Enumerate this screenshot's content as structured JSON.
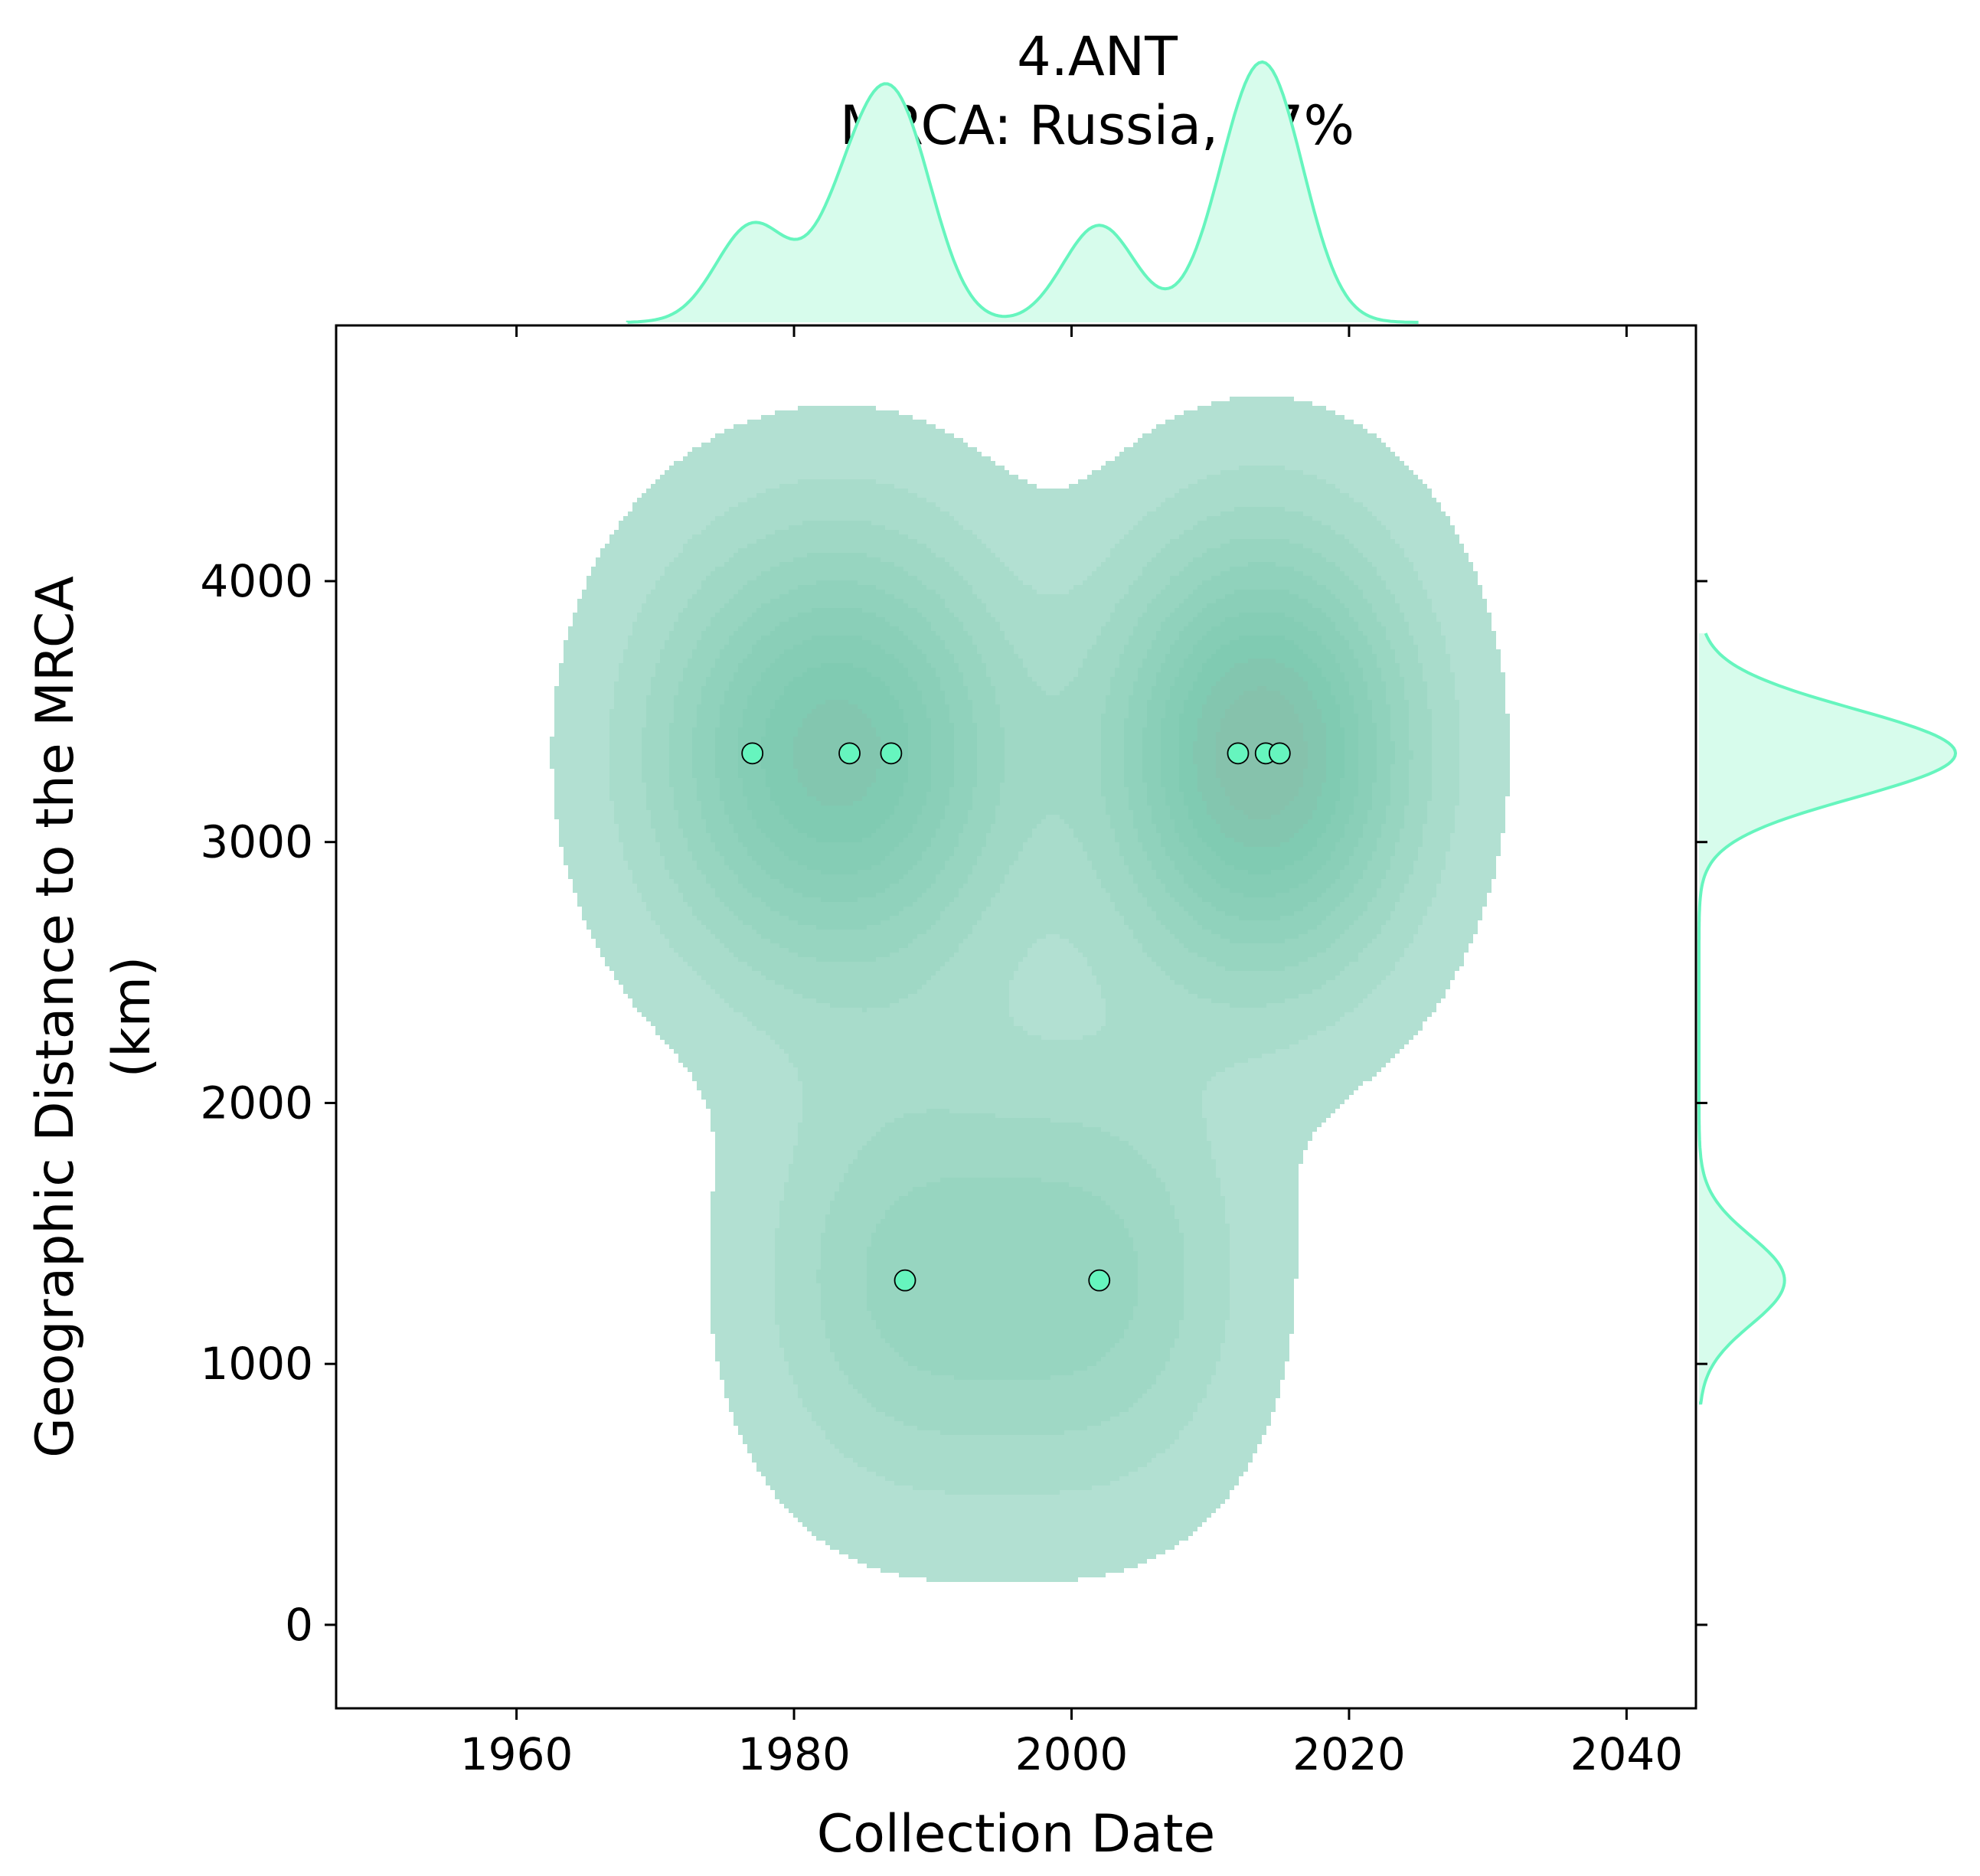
{
  "chart_data": {
    "type": "scatter",
    "title_lines": [
      "4.ANT",
      "MRCA: Russia, 97%"
    ],
    "xlabel": "Collection Date",
    "ylabel_lines": [
      "Geographic Distance to the MRCA",
      "(km)"
    ],
    "xlim": [
      1947,
      2045
    ],
    "ylim": [
      -320,
      4980
    ],
    "xticks": [
      1960,
      1980,
      2000,
      2020,
      2040
    ],
    "yticks": [
      0,
      1000,
      2000,
      3000,
      4000
    ],
    "kde_levels": 10,
    "kde_bandwidth": [
      7.2,
      560
    ],
    "grid": false,
    "legend": "none",
    "marginals": [
      "x-density-top",
      "y-density-right"
    ],
    "colors": {
      "points": "#66f5be",
      "kde_fill": "#66c2a5",
      "marginal_line": "#66f5be",
      "marginal_fill": "#d7fcec",
      "axes": "#000000"
    },
    "points": [
      {
        "x": 1977,
        "y": 3340
      },
      {
        "x": 1984,
        "y": 3340
      },
      {
        "x": 1987,
        "y": 3340
      },
      {
        "x": 1988,
        "y": 1320
      },
      {
        "x": 2002,
        "y": 1320
      },
      {
        "x": 2012,
        "y": 3340
      },
      {
        "x": 2014,
        "y": 3340
      },
      {
        "x": 2015,
        "y": 3340
      }
    ]
  }
}
